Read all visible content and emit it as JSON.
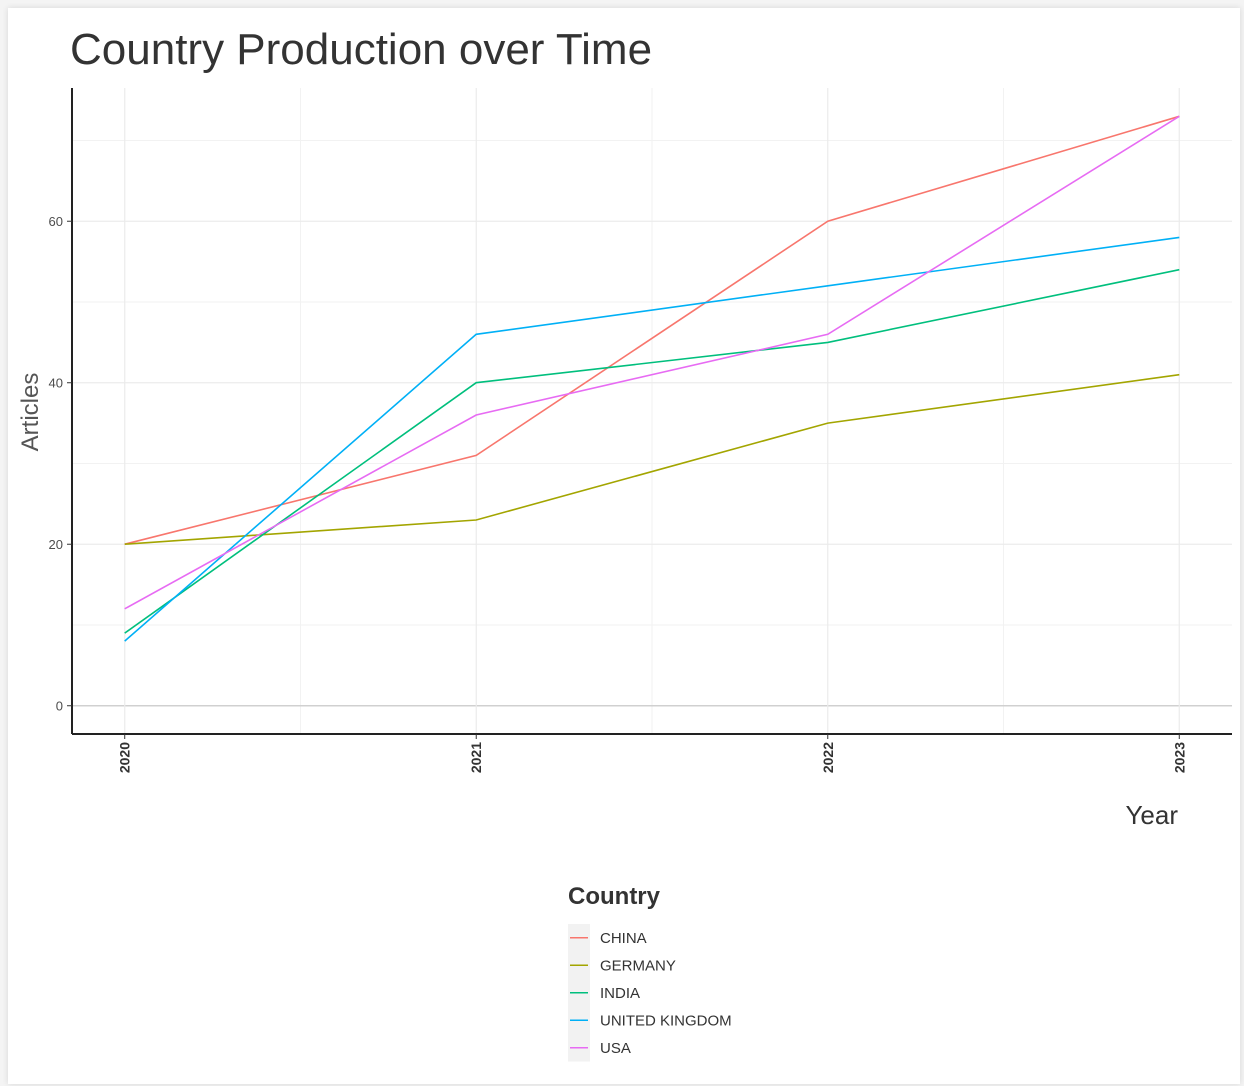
{
  "chart_data": {
    "type": "line",
    "title": "Country Production over Time",
    "xlabel": "Year",
    "ylabel": "Articles",
    "x": [
      2020,
      2021,
      2022,
      2023
    ],
    "x_tick_labels": [
      "2020",
      "2021",
      "2022",
      "2023"
    ],
    "yticks": [
      0,
      20,
      40,
      60
    ],
    "ylim": [
      -3.5,
      76.5
    ],
    "grid": true,
    "legend_title": "Country",
    "legend_position": "bottom",
    "series": [
      {
        "name": "CHINA",
        "color": "#F8766D",
        "values": [
          20,
          31,
          60,
          73
        ]
      },
      {
        "name": "GERMANY",
        "color": "#A3A500",
        "values": [
          20,
          23,
          35,
          41
        ]
      },
      {
        "name": "INDIA",
        "color": "#00BF7D",
        "values": [
          9,
          40,
          45,
          54
        ]
      },
      {
        "name": "UNITED KINGDOM",
        "color": "#00B0F6",
        "values": [
          8,
          46,
          52,
          58
        ]
      },
      {
        "name": "USA",
        "color": "#E76BF3",
        "values": [
          12,
          36,
          46,
          73
        ]
      }
    ]
  }
}
